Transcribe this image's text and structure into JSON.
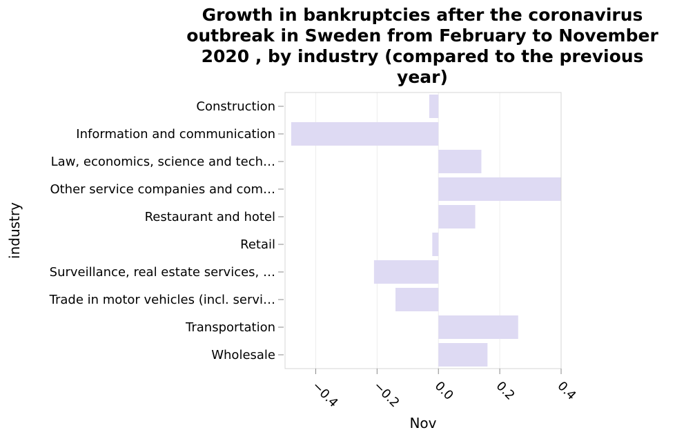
{
  "chart_data": {
    "type": "bar",
    "orientation": "horizontal",
    "title_lines": [
      "Growth in bankruptcies after the coronavirus",
      "outbreak in Sweden from February to November",
      "2020 , by industry (compared to the previous",
      "year)"
    ],
    "xlabel": "Nov",
    "ylabel": "industry",
    "xlim": [
      -0.5,
      0.4
    ],
    "xticks": [
      -0.4,
      -0.2,
      0.0,
      0.2,
      0.4
    ],
    "xtick_labels": [
      "−0.4",
      "−0.2",
      "0.0",
      "0.2",
      "0.4"
    ],
    "categories": [
      "Construction",
      "Information and communication",
      "Law, economics, science and tech…",
      "Other service companies and com…",
      "Restaurant and hotel",
      "Retail",
      "Surveillance, real estate services, …",
      "Trade in motor vehicles (incl. servi…",
      "Transportation",
      "Wholesale"
    ],
    "values": [
      -0.03,
      -0.48,
      0.14,
      0.4,
      0.12,
      -0.02,
      -0.21,
      -0.14,
      0.26,
      0.16
    ],
    "bar_color": "#dedaf3",
    "grid": true
  }
}
